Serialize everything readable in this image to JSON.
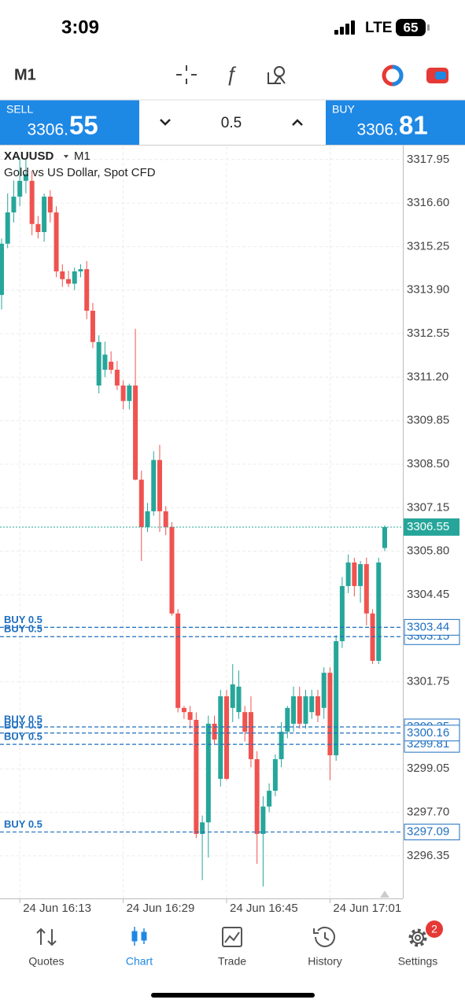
{
  "status": {
    "time": "3:09",
    "network": "LTE",
    "battery": "65"
  },
  "toolbar": {
    "timeframe": "M1"
  },
  "trade": {
    "sell_label": "SELL",
    "sell_price_main": "3306.",
    "sell_price_big": "55",
    "volume": "0.5",
    "buy_label": "BUY",
    "buy_price_main": "3306.",
    "buy_price_big": "81"
  },
  "chart_data": {
    "type": "candlestick",
    "title": "XAUUSD",
    "timeframe": "M1",
    "subtitle": "Gold vs US Dollar, Spot CFD",
    "up_color": "#26a69a",
    "down_color": "#ef5350",
    "grid": true,
    "categories": [
      null,
      null,
      null,
      "24 Jun 16:13",
      null,
      null,
      null,
      null,
      null,
      null,
      null,
      null,
      null,
      null,
      null,
      null,
      null,
      null,
      null,
      null,
      "24 Jun 16:29",
      null,
      null,
      null,
      null,
      null,
      null,
      null,
      null,
      null,
      null,
      null,
      null,
      null,
      null,
      null,
      null,
      "24 Jun 16:45",
      null,
      null,
      null,
      null,
      null,
      null,
      null,
      null,
      null,
      null,
      null,
      null,
      null,
      null,
      null,
      null,
      "24 Jun 17:01",
      null,
      null,
      null,
      null,
      null,
      null,
      null,
      null,
      null
    ],
    "open": [
      3313.75,
      3315.34,
      3316.31,
      3316.8,
      3317.29,
      3317.29,
      3315.95,
      3315.7,
      3316.8,
      3316.31,
      3314.48,
      3314.24,
      3314.1,
      3314.48,
      3314.55,
      3313.26,
      3310.94,
      3311.43,
      3311.68,
      3311.43,
      3310.94,
      3310.46,
      3310.94,
      3308.02,
      3306.55,
      3307.04,
      3308.63,
      3307.04,
      3306.55,
      3303.87,
      3300.94,
      3300.81,
      3300.57,
      3297.03,
      3297.39,
      3300.45,
      3298.74,
      3301.3,
      3300.94,
      3300.81,
      3300.81,
      3300.81,
      3299.35,
      3297.03,
      3297.88,
      3298.37,
      3299.35,
      3300.2,
      3300.45,
      3301.3,
      3300.45,
      3300.81,
      3301.3,
      3300.94,
      3302.03,
      3299.47,
      3303.01,
      3304.72,
      3305.45,
      3304.72,
      3305.4,
      3303.87,
      3302.4,
      3305.9
    ],
    "high": [
      3315.5,
      3316.9,
      3317.3,
      3318.0,
      3318.0,
      3317.6,
      3316.2,
      3316.9,
      3317.0,
      3316.5,
      3314.7,
      3314.5,
      3314.6,
      3314.7,
      3314.8,
      3313.5,
      3312.5,
      3312.3,
      3312.0,
      3311.7,
      3311.1,
      3311.0,
      3312.7,
      3308.3,
      3307.3,
      3308.9,
      3309.1,
      3307.2,
      3306.7,
      3304.0,
      3301.0,
      3301.0,
      3300.8,
      3297.6,
      3300.7,
      3300.7,
      3301.5,
      3301.5,
      3302.3,
      3302.1,
      3301.0,
      3301.3,
      3299.6,
      3298.2,
      3298.6,
      3299.5,
      3300.5,
      3301.0,
      3301.6,
      3301.6,
      3301.5,
      3301.5,
      3301.5,
      3302.2,
      3302.2,
      3303.2,
      3305.0,
      3305.7,
      3305.6,
      3305.5,
      3305.6,
      3304.0,
      3305.6,
      3306.6
    ],
    "low": [
      3313.3,
      3315.2,
      3316.0,
      3316.5,
      3316.9,
      3315.6,
      3315.5,
      3315.4,
      3316.0,
      3314.3,
      3314.0,
      3314.0,
      3313.9,
      3314.3,
      3313.0,
      3312.1,
      3310.7,
      3311.2,
      3311.3,
      3310.8,
      3310.2,
      3310.2,
      3308.0,
      3305.5,
      3306.4,
      3306.9,
      3306.4,
      3306.3,
      3303.8,
      3300.8,
      3300.6,
      3300.3,
      3296.9,
      3295.6,
      3296.3,
      3299.8,
      3298.5,
      3298.7,
      3300.5,
      3300.6,
      3299.9,
      3299.1,
      3296.1,
      3295.4,
      3297.7,
      3298.2,
      3299.1,
      3300.0,
      3300.2,
      3300.3,
      3300.3,
      3300.6,
      3300.5,
      3300.6,
      3298.7,
      3299.3,
      3302.8,
      3304.5,
      3304.4,
      3304.2,
      3303.5,
      3302.3,
      3302.3,
      3305.8
    ],
    "close": [
      3315.34,
      3316.31,
      3316.8,
      3317.29,
      3317.5,
      3315.95,
      3315.7,
      3316.8,
      3316.31,
      3314.48,
      3314.24,
      3314.1,
      3314.48,
      3314.55,
      3313.26,
      3312.29,
      3312.29,
      3311.9,
      3311.43,
      3310.94,
      3310.46,
      3310.94,
      3308.02,
      3306.55,
      3307.04,
      3308.63,
      3307.04,
      3306.55,
      3303.87,
      3300.94,
      3300.81,
      3300.57,
      3297.03,
      3297.39,
      3300.45,
      3299.96,
      3301.3,
      3298.74,
      3301.67,
      3301.6,
      3300.2,
      3299.35,
      3297.03,
      3297.88,
      3298.37,
      3299.35,
      3300.2,
      3300.94,
      3301.3,
      3300.45,
      3301.3,
      3301.3,
      3300.7,
      3302.03,
      3299.47,
      3303.01,
      3304.72,
      3305.45,
      3304.72,
      3305.4,
      3303.87,
      3302.4,
      3305.45,
      3306.55
    ],
    "ylim": [
      3295.03,
      3318.36
    ],
    "yticks": [
      3317.95,
      {
        "value": 3316.6,
        "label": "3316.60"
      },
      3315.25,
      {
        "value": 3313.9,
        "label": "3313.90"
      },
      3312.55,
      {
        "value": 3311.2,
        "label": "3311.20"
      },
      3309.85,
      {
        "value": 3308.5,
        "label": "3308.50"
      },
      3307.15,
      {
        "value": 3305.8,
        "label": "3305.80"
      },
      3304.45,
      3301.75,
      {
        "value": 3299.05,
        "label": "3299.05"
      },
      {
        "value": 3297.7,
        "label": "3297.70"
      },
      3296.35
    ],
    "current_price": 3306.55,
    "orders": [
      {
        "label": "BUY 0.5",
        "price": 3303.15
      },
      {
        "label": "BUY 0.5",
        "price": 3303.44
      },
      {
        "label": "BUY 0.5",
        "price": 3300.35
      },
      {
        "label": "BUY 0.5",
        "price": 3299.81
      },
      {
        "label": "BUY 0.5",
        "price": 3300.16
      },
      {
        "label": "BUY 0.5",
        "price": 3297.09
      }
    ]
  },
  "tabs": [
    {
      "label": "Quotes"
    },
    {
      "label": "Chart"
    },
    {
      "label": "Trade"
    },
    {
      "label": "History"
    },
    {
      "label": "Settings",
      "badge": "2"
    }
  ]
}
